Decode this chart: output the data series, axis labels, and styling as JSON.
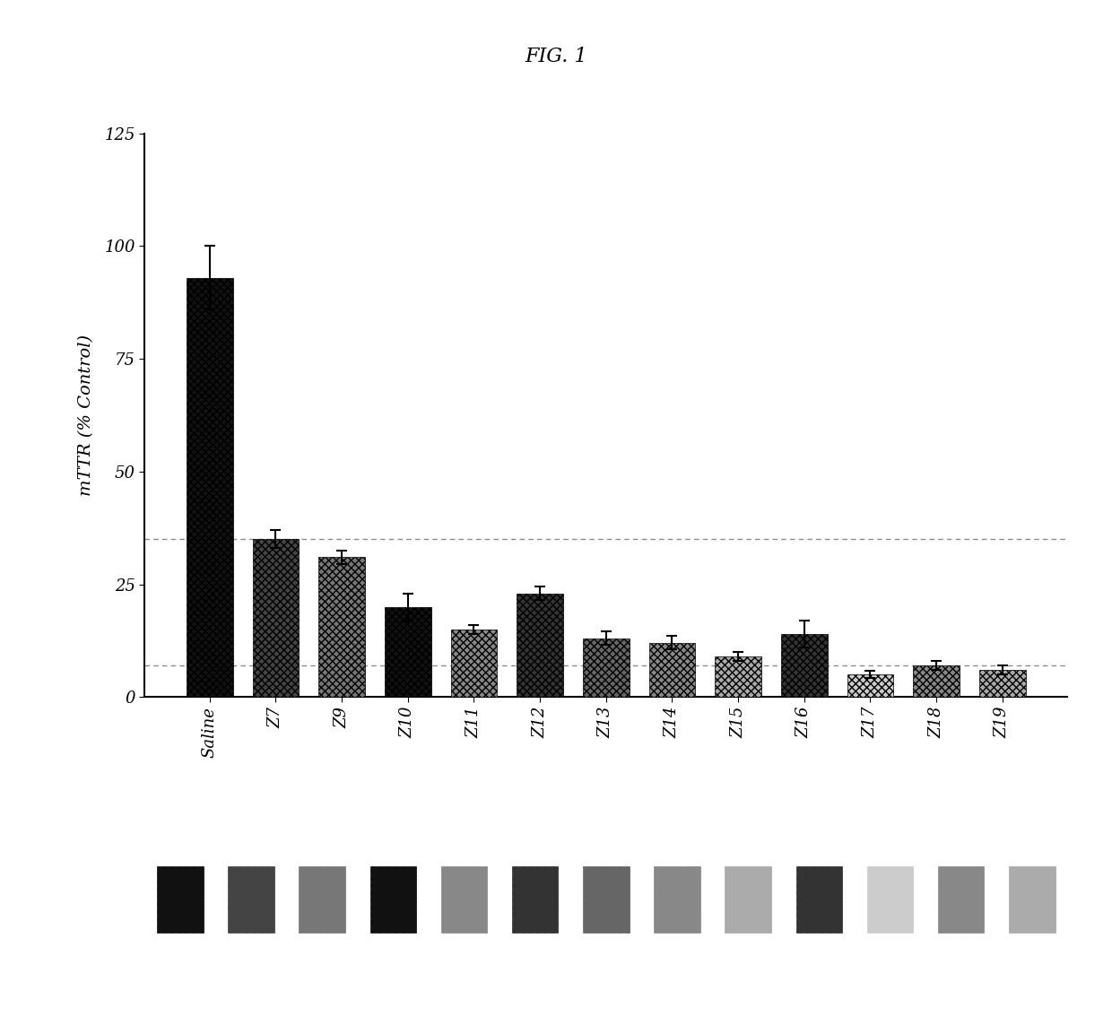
{
  "title": "FIG. 1",
  "ylabel": "mTTR (% Control)",
  "categories": [
    "Saline",
    "Z7",
    "Z9",
    "Z10",
    "Z11",
    "Z12",
    "Z13",
    "Z14",
    "Z15",
    "Z16",
    "Z17",
    "Z18",
    "Z19"
  ],
  "values": [
    93,
    35,
    31,
    20,
    15,
    23,
    13,
    12,
    9,
    14,
    5,
    7,
    6
  ],
  "errors": [
    7,
    2,
    1.5,
    3,
    1,
    1.5,
    1.5,
    1.5,
    1,
    3,
    0.8,
    1,
    1
  ],
  "ylim": [
    0,
    125
  ],
  "yticks": [
    0,
    25,
    50,
    75,
    100,
    125
  ],
  "dashed_line1": 35,
  "dashed_line2": 7,
  "background_color": "#ffffff",
  "bar_styles": [
    {
      "color": "#111111",
      "hatch": "xxxx",
      "label": "Saline"
    },
    {
      "color": "#444444",
      "hatch": "xxxx",
      "label": "Z7"
    },
    {
      "color": "#777777",
      "hatch": "xxxx",
      "label": "Z9"
    },
    {
      "color": "#111111",
      "hatch": "xxxx",
      "label": "Z10"
    },
    {
      "color": "#888888",
      "hatch": "xxxx",
      "label": "Z11"
    },
    {
      "color": "#333333",
      "hatch": "xxxx",
      "label": "Z12"
    },
    {
      "color": "#666666",
      "hatch": "xxxx",
      "label": "Z13"
    },
    {
      "color": "#888888",
      "hatch": "xxxx",
      "label": "Z14"
    },
    {
      "color": "#aaaaaa",
      "hatch": "xxxx",
      "label": "Z15"
    },
    {
      "color": "#333333",
      "hatch": "xxxx",
      "label": "Z16"
    },
    {
      "color": "#cccccc",
      "hatch": "xxxx",
      "label": "Z17"
    },
    {
      "color": "#888888",
      "hatch": "xxxx",
      "label": "Z18"
    },
    {
      "color": "#aaaaaa",
      "hatch": "xxxx",
      "label": "Z19"
    }
  ]
}
